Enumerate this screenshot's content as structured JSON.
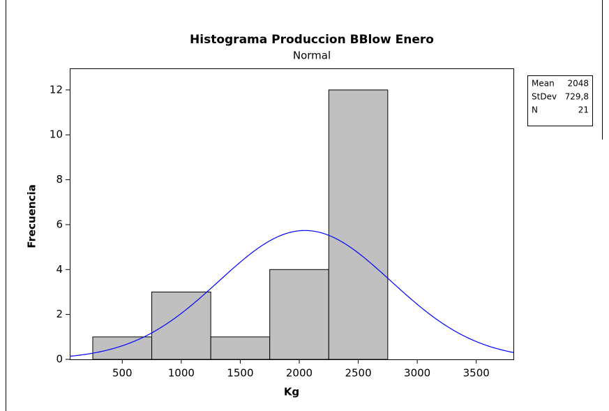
{
  "chart_data": {
    "type": "histogram",
    "title": "Histograma Produccion BBlow Enero",
    "subtitle": "Normal",
    "xlabel": "Kg",
    "ylabel": "Frecuencia",
    "bins": [
      250,
      750,
      1250,
      1750,
      2250,
      2750
    ],
    "values": [
      1,
      3,
      1,
      4,
      12
    ],
    "color": "#c0c0c0",
    "curve_color": "#0000ff",
    "xlim": [
      55,
      3815
    ],
    "ylim": [
      0,
      12.96
    ],
    "xticks": [
      500,
      1000,
      1500,
      2000,
      2500,
      3000,
      3500
    ],
    "yticks": [
      0,
      2,
      4,
      6,
      8,
      10,
      12
    ],
    "stats": [
      {
        "name": "Mean",
        "value": 2048
      },
      {
        "name": "StDev",
        "value": 729.8,
        "label": "729,8"
      },
      {
        "name": "N",
        "value": 21
      }
    ]
  }
}
